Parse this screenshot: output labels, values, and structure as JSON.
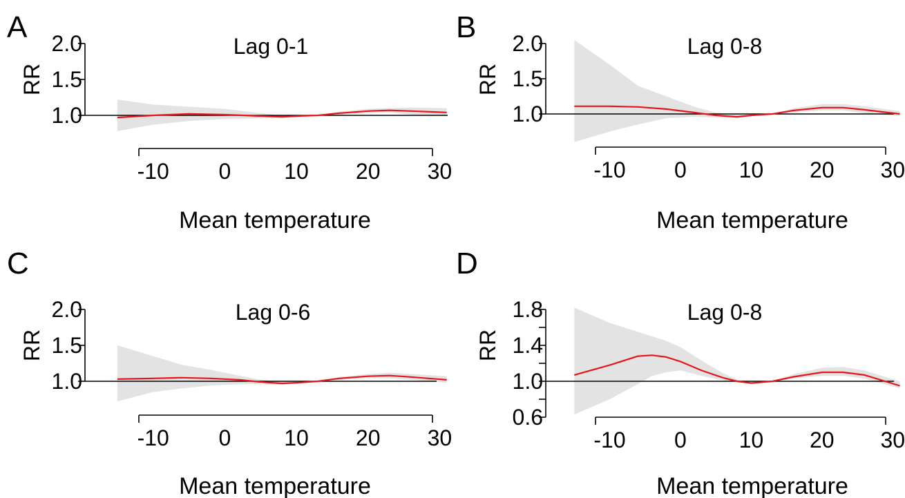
{
  "chart_data": [
    {
      "type": "line",
      "panel_label": "A",
      "title": "Lag 0-1",
      "xlabel": "Mean temperature",
      "ylabel": "RR",
      "xlim": [
        -15,
        31
      ],
      "ylim": [
        0.75,
        2.0
      ],
      "reference_line": 1.0,
      "x_ticks": [
        -10,
        0,
        10,
        20,
        30
      ],
      "y_ticks": [
        1.0,
        1.5,
        2.0
      ],
      "y_tick_labels": [
        "1.0",
        "1.5",
        "2.0"
      ],
      "series": [
        {
          "x": [
            -15,
            -10,
            -5,
            0,
            5,
            8,
            10,
            13,
            16,
            20,
            23,
            26,
            31
          ],
          "y": [
            0.97,
            1.0,
            1.02,
            1.01,
            0.99,
            0.98,
            0.99,
            1.0,
            1.03,
            1.06,
            1.07,
            1.06,
            1.04
          ],
          "ci_lower": [
            0.78,
            0.87,
            0.92,
            0.95,
            0.96,
            0.96,
            0.97,
            1.0,
            1.01,
            1.03,
            1.04,
            1.01,
            0.99
          ],
          "ci_upper": [
            1.22,
            1.15,
            1.12,
            1.09,
            1.03,
            1.0,
            1.01,
            1.0,
            1.05,
            1.09,
            1.1,
            1.11,
            1.1
          ]
        }
      ]
    },
    {
      "type": "line",
      "panel_label": "B",
      "title": "Lag 0-8",
      "xlabel": "Mean temperature",
      "ylabel": "RR",
      "xlim": [
        -15,
        31
      ],
      "ylim": [
        0.6,
        2.0
      ],
      "reference_line": 1.0,
      "x_ticks": [
        -10,
        0,
        10,
        20,
        30
      ],
      "y_ticks": [
        1.0,
        1.5,
        2.0
      ],
      "y_tick_labels": [
        "1.0",
        "1.5",
        "2.0"
      ],
      "series": [
        {
          "x": [
            -15,
            -10,
            -6,
            -2,
            2,
            5,
            8,
            10,
            13,
            16,
            20,
            23,
            26,
            31
          ],
          "y": [
            1.11,
            1.11,
            1.1,
            1.07,
            1.02,
            0.98,
            0.96,
            0.98,
            1.0,
            1.05,
            1.09,
            1.09,
            1.06,
            1.0
          ],
          "ci_lower": [
            0.6,
            0.75,
            0.85,
            0.94,
            0.96,
            0.95,
            0.94,
            0.97,
            1.0,
            1.02,
            1.05,
            1.05,
            1.01,
            0.97
          ],
          "ci_upper": [
            2.05,
            1.7,
            1.4,
            1.25,
            1.1,
            1.02,
            0.99,
            0.99,
            1.0,
            1.08,
            1.14,
            1.14,
            1.11,
            1.04
          ]
        }
      ]
    },
    {
      "type": "line",
      "panel_label": "C",
      "title": "Lag 0-6",
      "xlabel": "Mean temperature",
      "ylabel": "RR",
      "xlim": [
        -15,
        31
      ],
      "ylim": [
        0.7,
        2.0
      ],
      "reference_line": 1.0,
      "x_ticks": [
        -10,
        0,
        10,
        20,
        30
      ],
      "y_ticks": [
        1.0,
        1.5,
        2.0
      ],
      "y_tick_labels": [
        "1.0",
        "1.5",
        "2.0"
      ],
      "series": [
        {
          "x": [
            -15,
            -10,
            -6,
            -2,
            2,
            5,
            8,
            10,
            13,
            16,
            20,
            23,
            26,
            31
          ],
          "y": [
            1.03,
            1.04,
            1.05,
            1.04,
            1.02,
            0.99,
            0.97,
            0.98,
            1.0,
            1.04,
            1.07,
            1.08,
            1.06,
            1.02
          ],
          "ci_lower": [
            0.72,
            0.85,
            0.9,
            0.94,
            0.96,
            0.96,
            0.95,
            0.97,
            1.0,
            1.02,
            1.04,
            1.04,
            1.02,
            0.98
          ],
          "ci_upper": [
            1.5,
            1.35,
            1.23,
            1.16,
            1.08,
            1.02,
            0.99,
            0.99,
            1.0,
            1.06,
            1.1,
            1.12,
            1.1,
            1.07
          ]
        }
      ]
    },
    {
      "type": "line",
      "panel_label": "D",
      "title": "Lag 0-8",
      "xlabel": "Mean temperature",
      "ylabel": "RR",
      "xlim": [
        -15,
        31
      ],
      "ylim": [
        0.6,
        1.8
      ],
      "reference_line": 1.0,
      "x_ticks": [
        -10,
        0,
        10,
        20,
        30
      ],
      "y_ticks": [
        0.6,
        1.0,
        1.4,
        1.8
      ],
      "y_tick_labels": [
        "0.6",
        "1.0",
        "1.4",
        "1.8"
      ],
      "y_minor_ticks": [
        0.8,
        1.2,
        1.6
      ],
      "series": [
        {
          "x": [
            -15,
            -10,
            -6,
            -4,
            -2,
            0,
            3,
            6,
            8,
            10,
            13,
            16,
            20,
            23,
            26,
            31
          ],
          "y": [
            1.07,
            1.18,
            1.28,
            1.29,
            1.27,
            1.22,
            1.12,
            1.04,
            1.0,
            0.98,
            1.0,
            1.05,
            1.1,
            1.1,
            1.07,
            0.95
          ],
          "ci_lower": [
            0.63,
            0.8,
            0.97,
            1.06,
            1.1,
            1.12,
            1.06,
            1.01,
            0.99,
            0.97,
            1.0,
            1.03,
            1.06,
            1.06,
            1.03,
            0.92
          ],
          "ci_upper": [
            1.82,
            1.65,
            1.55,
            1.5,
            1.45,
            1.38,
            1.23,
            1.09,
            1.02,
            0.99,
            1.0,
            1.08,
            1.15,
            1.16,
            1.12,
            1.0
          ]
        }
      ]
    }
  ]
}
